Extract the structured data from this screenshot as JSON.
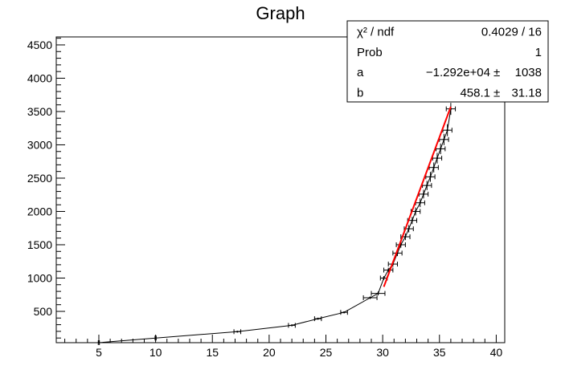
{
  "chart_data": {
    "type": "scatter",
    "title": "Graph",
    "xlabel": "",
    "ylabel": "",
    "xlim": [
      1.25,
      40.75
    ],
    "ylim": [
      30,
      4620
    ],
    "x_ticks": [
      5,
      10,
      15,
      20,
      25,
      30,
      35,
      40
    ],
    "y_ticks": [
      500,
      1000,
      1500,
      2000,
      2500,
      3000,
      3500,
      4000,
      4500
    ],
    "x_tick_labels": [
      "5",
      "10",
      "15",
      "20",
      "25",
      "30",
      "35",
      "40"
    ],
    "y_tick_labels": [
      "500",
      "1000",
      "1500",
      "2000",
      "2500",
      "3000",
      "3500",
      "4000",
      "4500"
    ],
    "series": [
      {
        "name": "Graph",
        "color": "#000000",
        "x": [
          5,
          10,
          17.2,
          22,
          24.3,
          26.6,
          28.9,
          29.6,
          30.1,
          30.5,
          30.9,
          31.3,
          31.6,
          32.0,
          32.3,
          32.6,
          32.9,
          33.3,
          33.6,
          33.9,
          34.2,
          34.5,
          34.8,
          35.1,
          35.4,
          35.7,
          36.0
        ],
        "y": [
          30,
          100,
          195,
          290,
          390,
          485,
          705,
          770,
          1000,
          1120,
          1210,
          1375,
          1500,
          1620,
          1740,
          1865,
          2000,
          2130,
          2260,
          2390,
          2520,
          2660,
          2800,
          2940,
          3080,
          3220,
          3540
        ],
        "ex": [
          0.05,
          0.05,
          0.3,
          0.3,
          0.3,
          0.3,
          0.6,
          0.6,
          0.3,
          0.4,
          0.4,
          0.4,
          0.4,
          0.4,
          0.4,
          0.4,
          0.4,
          0.4,
          0.4,
          0.4,
          0.4,
          0.4,
          0.4,
          0.4,
          0.4,
          0.4,
          0.4
        ],
        "ey": [
          0,
          0,
          12,
          14,
          15,
          15,
          20,
          30,
          30,
          35,
          40,
          45,
          45,
          50,
          55,
          55,
          60,
          65,
          65,
          70,
          75,
          75,
          80,
          80,
          85,
          90,
          90
        ]
      }
    ],
    "fit": {
      "type": "linear",
      "color": "#ff0000",
      "x_range": [
        30.1,
        36.0
      ],
      "a": -12920,
      "b": 458.1
    },
    "stats_box": {
      "position": "top-right",
      "rows": [
        {
          "label": "χ² / ndf",
          "value": "0.4029 / 16",
          "error": ""
        },
        {
          "label": "Prob",
          "value": "1",
          "error": ""
        },
        {
          "label": "a",
          "value": "−1.292e+04",
          "error": "1038"
        },
        {
          "label": "b",
          "value": "458.1",
          "error": "31.18"
        }
      ],
      "pm": "±"
    }
  }
}
